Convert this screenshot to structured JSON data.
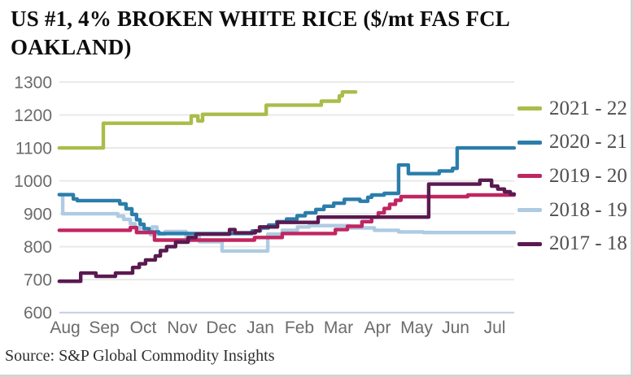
{
  "title": {
    "line1": "US #1, 4% BROKEN WHITE RICE ($/mt FAS FCL",
    "line2": "OAKLAND)",
    "full": "US #1, 4% BROKEN WHITE RICE ($/mt FAS FCL OAKLAND)"
  },
  "source": "Source: S&P Global Commodity Insights",
  "colors": {
    "axis_text": "#6b6b6b",
    "gridline": "#e9e9e9",
    "baseline": "#bfd0e6",
    "legend_text": "#4f4f4f"
  },
  "chart_data": {
    "type": "line",
    "step": true,
    "title": "US #1, 4% BROKEN WHITE RICE ($/mt FAS FCL OAKLAND)",
    "x_labels": [
      "Aug",
      "Sep",
      "Oct",
      "Nov",
      "Dec",
      "Jan",
      "Feb",
      "Mar",
      "Apr",
      "May",
      "Jun",
      "Jul"
    ],
    "x_unit": "month index from Aug (0) to Jul (11), fractional = weeks",
    "y_axis": {
      "min": 600,
      "max": 1300,
      "step": 100
    },
    "grid": "horizontal-only",
    "legend_position": "right",
    "series": [
      {
        "name": "2021 - 22",
        "color": "#a9bd4a",
        "end": 7.44,
        "points": [
          [
            -0.15,
            1100
          ],
          [
            0.98,
            1175
          ],
          [
            3.23,
            1197
          ],
          [
            3.4,
            1182
          ],
          [
            3.52,
            1202
          ],
          [
            5.15,
            1230
          ],
          [
            6.56,
            1242
          ],
          [
            7.02,
            1258
          ],
          [
            7.1,
            1270
          ]
        ]
      },
      {
        "name": "2020 - 21",
        "color": "#2b7dab",
        "end": 11.5,
        "points": [
          [
            -0.15,
            958
          ],
          [
            0.21,
            945
          ],
          [
            0.31,
            940
          ],
          [
            1.4,
            930
          ],
          [
            1.56,
            915
          ],
          [
            1.71,
            898
          ],
          [
            1.83,
            882
          ],
          [
            1.92,
            868
          ],
          [
            2.02,
            855
          ],
          [
            2.15,
            845
          ],
          [
            2.4,
            840
          ],
          [
            4.79,
            848
          ],
          [
            5.0,
            857
          ],
          [
            5.21,
            866
          ],
          [
            5.42,
            876
          ],
          [
            5.67,
            884
          ],
          [
            5.94,
            894
          ],
          [
            6.15,
            903
          ],
          [
            6.42,
            913
          ],
          [
            6.63,
            923
          ],
          [
            6.88,
            932
          ],
          [
            7.15,
            944
          ],
          [
            7.55,
            938
          ],
          [
            7.75,
            950
          ],
          [
            7.85,
            957
          ],
          [
            8.17,
            962
          ],
          [
            8.54,
            1048
          ],
          [
            8.79,
            1022
          ],
          [
            9.58,
            1030
          ],
          [
            9.92,
            1038
          ],
          [
            10.04,
            1100
          ]
        ]
      },
      {
        "name": "2019 - 20",
        "color": "#c02661",
        "end": 11.5,
        "points": [
          [
            -0.15,
            850
          ],
          [
            1.67,
            858
          ],
          [
            1.83,
            843
          ],
          [
            2.29,
            820
          ],
          [
            4.85,
            828
          ],
          [
            5.56,
            840
          ],
          [
            6.92,
            852
          ],
          [
            7.23,
            862
          ],
          [
            7.6,
            876
          ],
          [
            7.85,
            890
          ],
          [
            8.02,
            903
          ],
          [
            8.17,
            916
          ],
          [
            8.31,
            929
          ],
          [
            8.46,
            941
          ],
          [
            8.6,
            952
          ],
          [
            10.31,
            957
          ]
        ]
      },
      {
        "name": "2018 - 19",
        "color": "#aecbe2",
        "end": 11.5,
        "points": [
          [
            -0.15,
            958
          ],
          [
            -0.06,
            900
          ],
          [
            1.35,
            893
          ],
          [
            1.5,
            883
          ],
          [
            1.67,
            870
          ],
          [
            1.79,
            858
          ],
          [
            1.92,
            845
          ],
          [
            2.19,
            836
          ],
          [
            2.23,
            860
          ],
          [
            2.35,
            838
          ],
          [
            2.56,
            846
          ],
          [
            3.1,
            828
          ],
          [
            3.44,
            815
          ],
          [
            4.02,
            787
          ],
          [
            5.19,
            838
          ],
          [
            5.56,
            850
          ],
          [
            5.95,
            860
          ],
          [
            6.25,
            864
          ],
          [
            7.29,
            857
          ],
          [
            7.92,
            850
          ],
          [
            8.54,
            845
          ],
          [
            9.17,
            843
          ]
        ]
      },
      {
        "name": "2017 - 18",
        "color": "#5a1a50",
        "end": 11.5,
        "points": [
          [
            -0.15,
            695
          ],
          [
            0.4,
            720
          ],
          [
            0.79,
            710
          ],
          [
            1.29,
            720
          ],
          [
            1.73,
            737
          ],
          [
            1.9,
            748
          ],
          [
            2.06,
            760
          ],
          [
            2.31,
            772
          ],
          [
            2.44,
            788
          ],
          [
            2.6,
            800
          ],
          [
            2.83,
            814
          ],
          [
            3.15,
            828
          ],
          [
            3.35,
            838
          ],
          [
            4.21,
            852
          ],
          [
            4.35,
            842
          ],
          [
            4.87,
            848
          ],
          [
            4.98,
            860
          ],
          [
            5.44,
            874
          ],
          [
            6.48,
            890
          ],
          [
            9.31,
            990
          ],
          [
            10.62,
            1002
          ],
          [
            10.92,
            984
          ],
          [
            11.08,
            975
          ],
          [
            11.25,
            967
          ],
          [
            11.4,
            960
          ]
        ]
      }
    ]
  }
}
